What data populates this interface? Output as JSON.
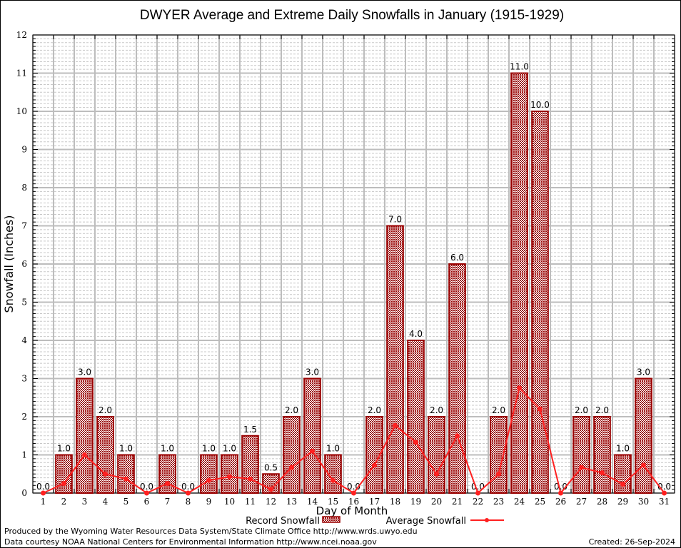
{
  "chart_data": {
    "type": "bar",
    "title": "DWYER Average and Extreme Daily Snowfalls in January (1915-1929)",
    "xlabel": "Day of Month",
    "ylabel": "Snowfall (Inches)",
    "ylim": [
      0,
      12
    ],
    "yticks": [
      0,
      1,
      2,
      3,
      4,
      5,
      6,
      7,
      8,
      9,
      10,
      11,
      12
    ],
    "grid": true,
    "legend_position": "bottom",
    "categories": [
      "1",
      "2",
      "3",
      "4",
      "5",
      "6",
      "7",
      "8",
      "9",
      "10",
      "11",
      "12",
      "13",
      "14",
      "15",
      "16",
      "17",
      "18",
      "19",
      "20",
      "21",
      "22",
      "23",
      "24",
      "25",
      "26",
      "27",
      "28",
      "29",
      "30",
      "31"
    ],
    "series": [
      {
        "name": "Record Snowfall",
        "type": "bar",
        "color": "#990000",
        "values": [
          0.0,
          1.0,
          3.0,
          2.0,
          1.0,
          0.0,
          1.0,
          0.0,
          1.0,
          1.0,
          1.5,
          0.5,
          2.0,
          3.0,
          1.0,
          0.0,
          2.0,
          7.0,
          4.0,
          2.0,
          6.0,
          0.0,
          2.0,
          11.0,
          10.0,
          0.0,
          2.0,
          2.0,
          1.0,
          3.0,
          0.0
        ],
        "labels": [
          "0.0",
          "1.0",
          "3.0",
          "2.0",
          "1.0",
          "0.0",
          "1.0",
          "0.0",
          "1.0",
          "1.0",
          "1.5",
          "0.5",
          "2.0",
          "3.0",
          "1.0",
          "0.0",
          "2.0",
          "7.0",
          "4.0",
          "2.0",
          "6.0",
          "0.0",
          "2.0",
          "11.0",
          "10.0",
          "0.0",
          "2.0",
          "2.0",
          "1.0",
          "3.0",
          "0.0"
        ]
      },
      {
        "name": "Average Snowfall",
        "type": "line",
        "color": "#ff2020",
        "values": [
          0.0,
          0.25,
          1.0,
          0.5,
          0.37,
          0.0,
          0.25,
          0.0,
          0.33,
          0.43,
          0.37,
          0.1,
          0.67,
          1.1,
          0.33,
          0.0,
          0.73,
          1.77,
          1.33,
          0.5,
          1.5,
          0.0,
          0.5,
          2.75,
          2.2,
          0.0,
          0.67,
          0.53,
          0.23,
          0.73,
          0.0
        ]
      }
    ]
  },
  "footer": {
    "line1": "Produced by the Wyoming Water Resources Data System/State Climate Office http://www.wrds.uwyo.edu",
    "line2": "Data courtesy NOAA National Centers for Environmental Information http://www.ncei.noaa.gov",
    "created": "Created:  26-Sep-2024"
  }
}
